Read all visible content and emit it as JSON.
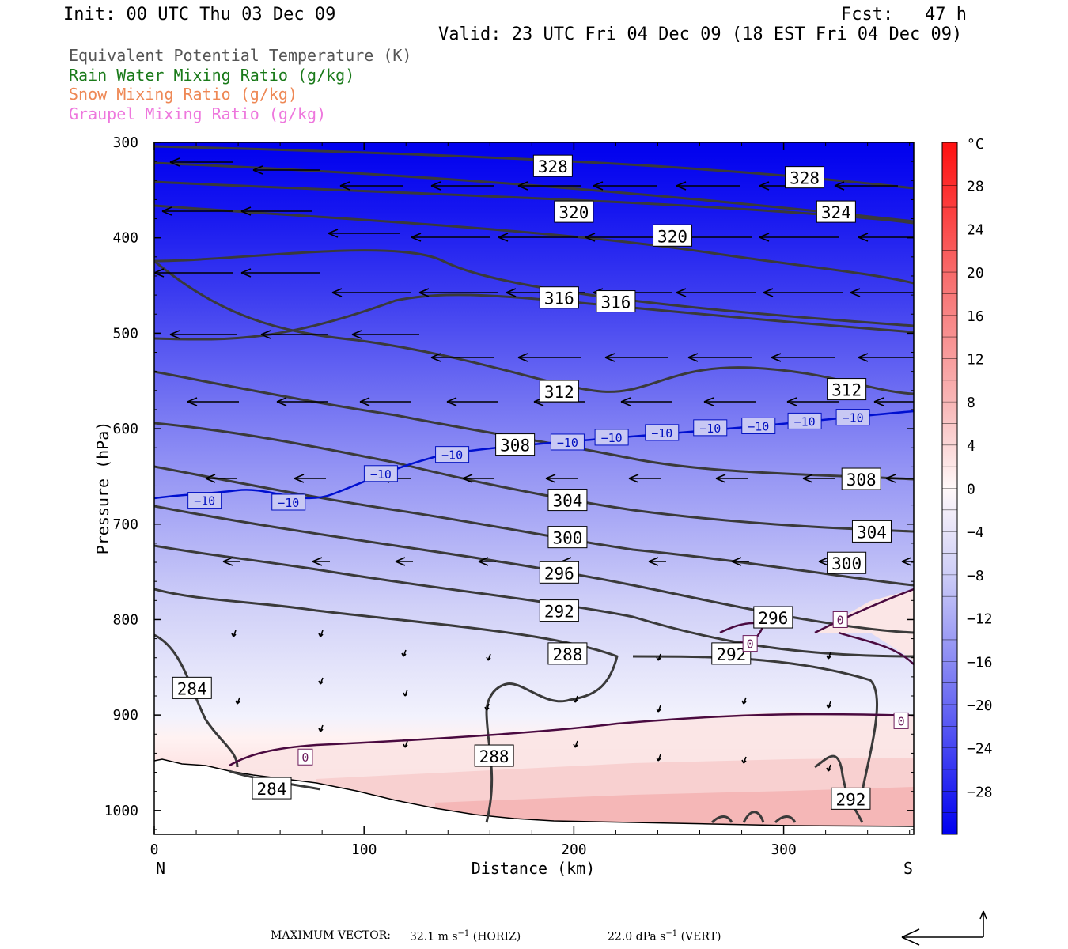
{
  "header": {
    "init": "Init: 00 UTC Thu 03 Dec 09",
    "fcst": "Fcst:   47 h",
    "valid": "Valid: 23 UTC Fri 04 Dec 09 (18 EST Fri 04 Dec 09)"
  },
  "legend": [
    {
      "label": "Equivalent Potential Temperature (K)",
      "color": "#555555"
    },
    {
      "label": "Rain Water Mixing Ratio (g/kg)",
      "color": "#1a7a1a"
    },
    {
      "label": "Snow Mixing Ratio (g/kg)",
      "color": "#ee8855"
    },
    {
      "label": "Graupel Mixing Ratio (g/kg)",
      "color": "#ee77dd"
    }
  ],
  "chart_data": {
    "type": "heatmap",
    "xlabel": "Distance (km)",
    "ylabel": "Pressure (hPa)",
    "xlim": [
      0,
      362
    ],
    "ylim": [
      1025,
      300
    ],
    "x_ticks": [
      0,
      100,
      200,
      300
    ],
    "y_ticks": [
      300,
      400,
      500,
      600,
      700,
      800,
      900,
      1000
    ],
    "x_end_labels": {
      "left": "N",
      "right": "S"
    },
    "colorbar": {
      "unit": "°C",
      "tick_labels": [
        "28",
        "24",
        "20",
        "16",
        "12",
        "8",
        "4",
        "0",
        "−4",
        "−8",
        "−12",
        "−16",
        "−20",
        "−24",
        "−28"
      ],
      "tick_values": [
        28,
        24,
        20,
        16,
        12,
        8,
        4,
        0,
        -4,
        -8,
        -12,
        -16,
        -20,
        -24,
        -28
      ],
      "range": [
        -32,
        32
      ]
    },
    "theta_e_contour_labels": [
      {
        "text": "328",
        "x": 190,
        "p": 325
      },
      {
        "text": "328",
        "x": 310,
        "p": 337
      },
      {
        "text": "324",
        "x": 325,
        "p": 373
      },
      {
        "text": "320",
        "x": 200,
        "p": 373
      },
      {
        "text": "320",
        "x": 247,
        "p": 398
      },
      {
        "text": "316",
        "x": 193,
        "p": 463
      },
      {
        "text": "316",
        "x": 220,
        "p": 467
      },
      {
        "text": "312",
        "x": 193,
        "p": 561
      },
      {
        "text": "312",
        "x": 330,
        "p": 559
      },
      {
        "text": "308",
        "x": 172,
        "p": 617
      },
      {
        "text": "308",
        "x": 337,
        "p": 653
      },
      {
        "text": "304",
        "x": 197,
        "p": 675
      },
      {
        "text": "304",
        "x": 342,
        "p": 708
      },
      {
        "text": "300",
        "x": 197,
        "p": 714
      },
      {
        "text": "300",
        "x": 330,
        "p": 741
      },
      {
        "text": "296",
        "x": 193,
        "p": 751
      },
      {
        "text": "296",
        "x": 295,
        "p": 798
      },
      {
        "text": "292",
        "x": 193,
        "p": 791
      },
      {
        "text": "292",
        "x": 275,
        "p": 836
      },
      {
        "text": "292",
        "x": 332,
        "p": 988
      },
      {
        "text": "288",
        "x": 197,
        "p": 836
      },
      {
        "text": "288",
        "x": 162,
        "p": 943
      },
      {
        "text": "284",
        "x": 18,
        "p": 872
      },
      {
        "text": "284",
        "x": 56,
        "p": 977
      }
    ],
    "isotherm_labels": [
      {
        "text": "−10",
        "x": 24,
        "p": 675
      },
      {
        "text": "−10",
        "x": 64,
        "p": 677
      },
      {
        "text": "−10",
        "x": 108,
        "p": 647
      },
      {
        "text": "−10",
        "x": 142,
        "p": 627
      },
      {
        "text": "−10",
        "x": 197,
        "p": 614
      },
      {
        "text": "−10",
        "x": 218,
        "p": 609
      },
      {
        "text": "−10",
        "x": 242,
        "p": 604
      },
      {
        "text": "−10",
        "x": 265,
        "p": 599
      },
      {
        "text": "−10",
        "x": 288,
        "p": 597
      },
      {
        "text": "−10",
        "x": 310,
        "p": 592
      },
      {
        "text": "−10",
        "x": 333,
        "p": 588
      },
      {
        "text": "0",
        "x": 72,
        "p": 944
      },
      {
        "text": "0",
        "x": 327,
        "p": 800
      },
      {
        "text": "0",
        "x": 356,
        "p": 906
      },
      {
        "text": "0",
        "x": 284,
        "p": 825
      }
    ]
  },
  "footer": {
    "max_vector_label": "MAXIMUM VECTOR:",
    "horiz_value": "32.1 m s",
    "horiz_exp": "−1",
    "horiz_tag": "(HORIZ)",
    "vert_value": "22.0 dPa s",
    "vert_exp": "−1",
    "vert_tag": "(VERT)"
  }
}
